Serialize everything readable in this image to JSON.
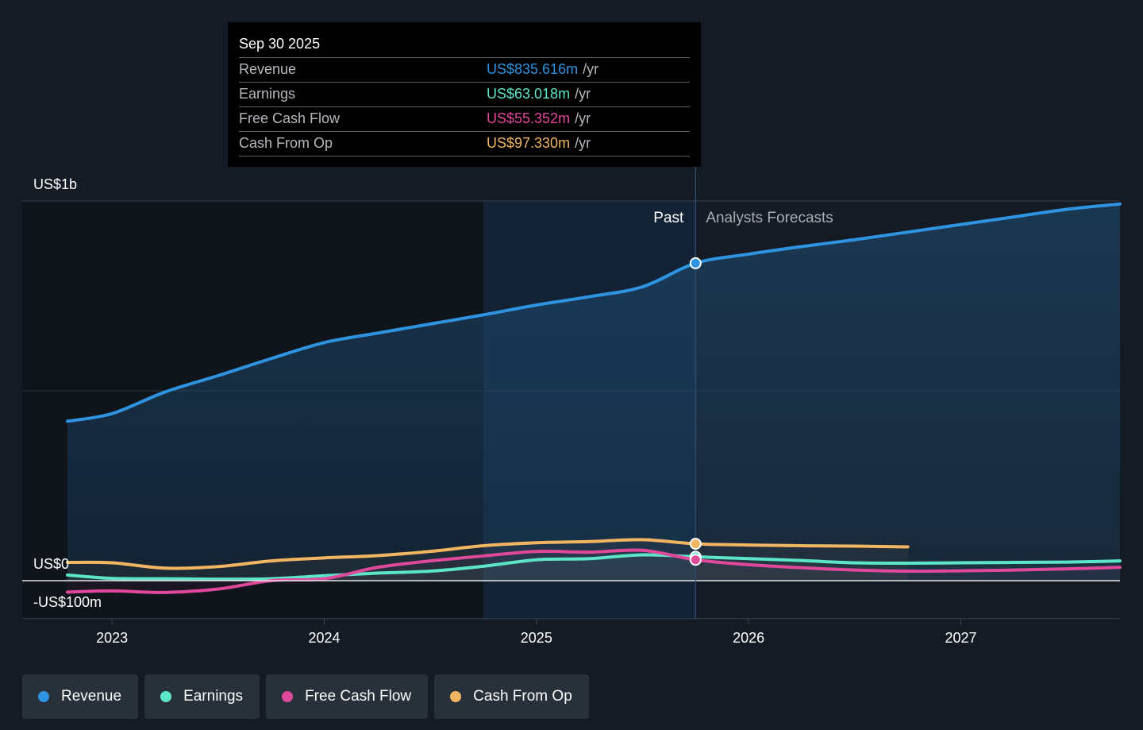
{
  "chart_data": {
    "type": "line",
    "y_labels": {
      "top": "US$1b",
      "zero": "US$0",
      "bottom": "-US$100m"
    },
    "ylim": [
      -100,
      1000
    ],
    "xlim": [
      2022.79,
      2027.75
    ],
    "x_ticks": [
      {
        "value": 2023,
        "label": "2023"
      },
      {
        "value": 2024,
        "label": "2024"
      },
      {
        "value": 2025,
        "label": "2025"
      },
      {
        "value": 2026,
        "label": "2026"
      },
      {
        "value": 2027,
        "label": "2027"
      }
    ],
    "past_label": "Past",
    "forecast_label": "Analysts Forecasts",
    "forecast_start": 2025.75,
    "highlight_start": 2024.75,
    "series": [
      {
        "key": "revenue",
        "name": "Revenue",
        "color": "#2e93e0",
        "x": [
          2022.79,
          2023.0,
          2023.25,
          2023.5,
          2023.75,
          2024.0,
          2024.25,
          2024.5,
          2024.75,
          2025.0,
          2025.25,
          2025.5,
          2025.75,
          2026.0,
          2026.25,
          2026.5,
          2026.75,
          2027.0,
          2027.25,
          2027.5,
          2027.75
        ],
        "values": [
          420,
          440,
          497,
          540,
          585,
          627,
          652,
          676,
          700,
          726,
          748,
          774,
          836,
          860,
          880,
          898,
          918,
          938,
          958,
          978,
          992
        ]
      },
      {
        "key": "earnings",
        "name": "Earnings",
        "color": "#5ce5c8",
        "x": [
          2022.79,
          2023.0,
          2023.25,
          2023.5,
          2023.75,
          2024.0,
          2024.25,
          2024.5,
          2024.75,
          2025.0,
          2025.25,
          2025.5,
          2025.75,
          2026.0,
          2026.25,
          2026.5,
          2026.75,
          2027.0,
          2027.25,
          2027.5,
          2027.75
        ],
        "values": [
          15,
          6,
          5,
          4,
          5,
          13,
          20,
          25,
          38,
          55,
          58,
          68,
          63,
          58,
          53,
          47,
          46,
          47,
          48,
          49,
          52
        ]
      },
      {
        "key": "fcf",
        "name": "Free Cash Flow",
        "color": "#e0489b",
        "x": [
          2022.79,
          2023.0,
          2023.25,
          2023.5,
          2023.75,
          2024.0,
          2024.25,
          2024.5,
          2024.75,
          2025.0,
          2025.25,
          2025.5,
          2025.75,
          2026.0,
          2026.25,
          2026.5,
          2026.75,
          2027.0,
          2027.25,
          2027.5,
          2027.75
        ],
        "values": [
          -30,
          -27,
          -31,
          -22,
          0,
          5,
          35,
          52,
          65,
          77,
          75,
          80,
          55,
          42,
          34,
          28,
          25,
          26,
          28,
          31,
          35
        ]
      },
      {
        "key": "cfo",
        "name": "Cash From Op",
        "color": "#f2b561",
        "x": [
          2022.79,
          2023.0,
          2023.25,
          2023.5,
          2023.75,
          2024.0,
          2024.25,
          2024.5,
          2024.75,
          2025.0,
          2025.25,
          2025.5,
          2025.75,
          2026.0,
          2026.25,
          2026.5,
          2026.75
        ],
        "values": [
          48,
          47,
          33,
          37,
          52,
          60,
          66,
          77,
          92,
          100,
          103,
          108,
          97,
          94,
          92,
          91,
          89
        ]
      }
    ],
    "marker_x": 2025.75
  },
  "tooltip": {
    "date": "Sep 30 2025",
    "rows": [
      {
        "label": "Revenue",
        "value": "US$835.616m",
        "unit": "/yr",
        "color": "#2e93e0"
      },
      {
        "label": "Earnings",
        "value": "US$63.018m",
        "unit": "/yr",
        "color": "#5ce5c8"
      },
      {
        "label": "Free Cash Flow",
        "value": "US$55.352m",
        "unit": "/yr",
        "color": "#e0489b"
      },
      {
        "label": "Cash From Op",
        "value": "US$97.330m",
        "unit": "/yr",
        "color": "#f2b561"
      }
    ]
  },
  "legend": [
    {
      "label": "Revenue",
      "color": "#2e93e0"
    },
    {
      "label": "Earnings",
      "color": "#5ce5c8"
    },
    {
      "label": "Free Cash Flow",
      "color": "#e0489b"
    },
    {
      "label": "Cash From Op",
      "color": "#f2b561"
    }
  ]
}
